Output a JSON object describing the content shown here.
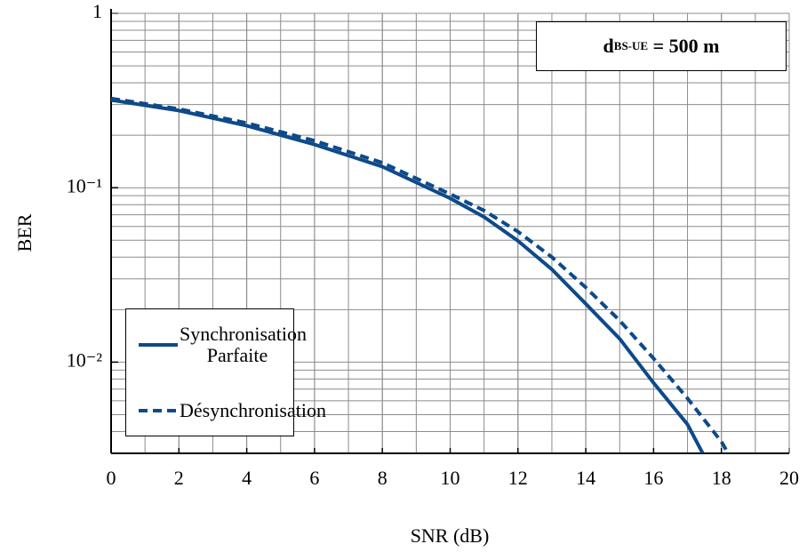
{
  "chart_data": {
    "type": "line",
    "xlabel": "SNR (dB)",
    "ylabel": "BER",
    "xlim": [
      0,
      20
    ],
    "xticks": [
      0,
      2,
      4,
      6,
      8,
      10,
      12,
      14,
      16,
      18,
      20
    ],
    "ylim": [
      0.003,
      1
    ],
    "yscale": "log",
    "yticks": [
      {
        "value": 0.01,
        "label": "10⁻²"
      },
      {
        "value": 0.1,
        "label": "10⁻¹"
      },
      1
    ],
    "grid": true,
    "legend": "lower left",
    "annotation": {
      "text": "d",
      "subscript": "BS-UE",
      "suffix": " = 500 m"
    },
    "series": [
      {
        "name": "Synchronisation Parfaite",
        "color": "#0d4a8a",
        "style": "solid",
        "x": [
          0,
          2,
          4,
          6,
          8,
          10,
          11,
          12,
          13,
          14,
          15,
          16,
          17,
          17.45
        ],
        "values": [
          0.318,
          0.277,
          0.227,
          0.177,
          0.132,
          0.087,
          0.068,
          0.0496,
          0.034,
          0.0216,
          0.0136,
          0.0076,
          0.0044,
          0.003
        ]
      },
      {
        "name": "Désynchronisation",
        "color": "#0d4a8a",
        "style": "dashed",
        "x": [
          0,
          2,
          4,
          6,
          8,
          10,
          11,
          12,
          13,
          14,
          15,
          16,
          17,
          18,
          18.2
        ],
        "values": [
          0.325,
          0.283,
          0.235,
          0.186,
          0.139,
          0.092,
          0.074,
          0.056,
          0.04,
          0.0268,
          0.0173,
          0.0105,
          0.0062,
          0.0035,
          0.003
        ]
      }
    ]
  }
}
